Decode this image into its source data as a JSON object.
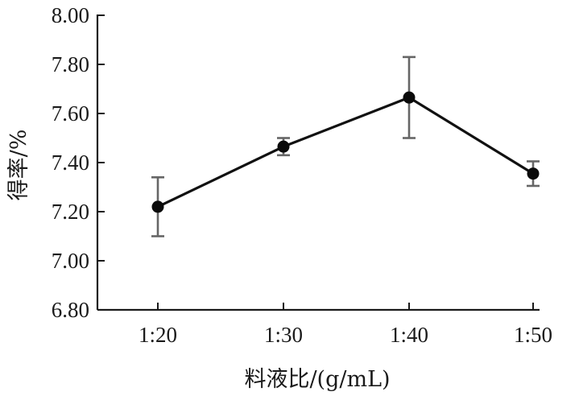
{
  "chart_data": {
    "type": "line",
    "categories": [
      "1:20",
      "1:30",
      "1:40",
      "1:50"
    ],
    "series": [
      {
        "values": [
          7.22,
          7.465,
          7.665,
          7.355
        ],
        "error": [
          0.12,
          0.035,
          0.165,
          0.05
        ]
      }
    ],
    "xlabel": "料液比/(g/mL)",
    "ylabel": "得率/%",
    "ylim": [
      6.8,
      8.0
    ],
    "yticks": [
      "6.80",
      "7.00",
      "7.20",
      "7.40",
      "7.60",
      "7.80",
      "8.00"
    ],
    "grid": false,
    "colors": {
      "line": "#111111",
      "marker": "#0a0a0a",
      "error_bar": "#666666",
      "axis": "#1a1a1a"
    }
  }
}
